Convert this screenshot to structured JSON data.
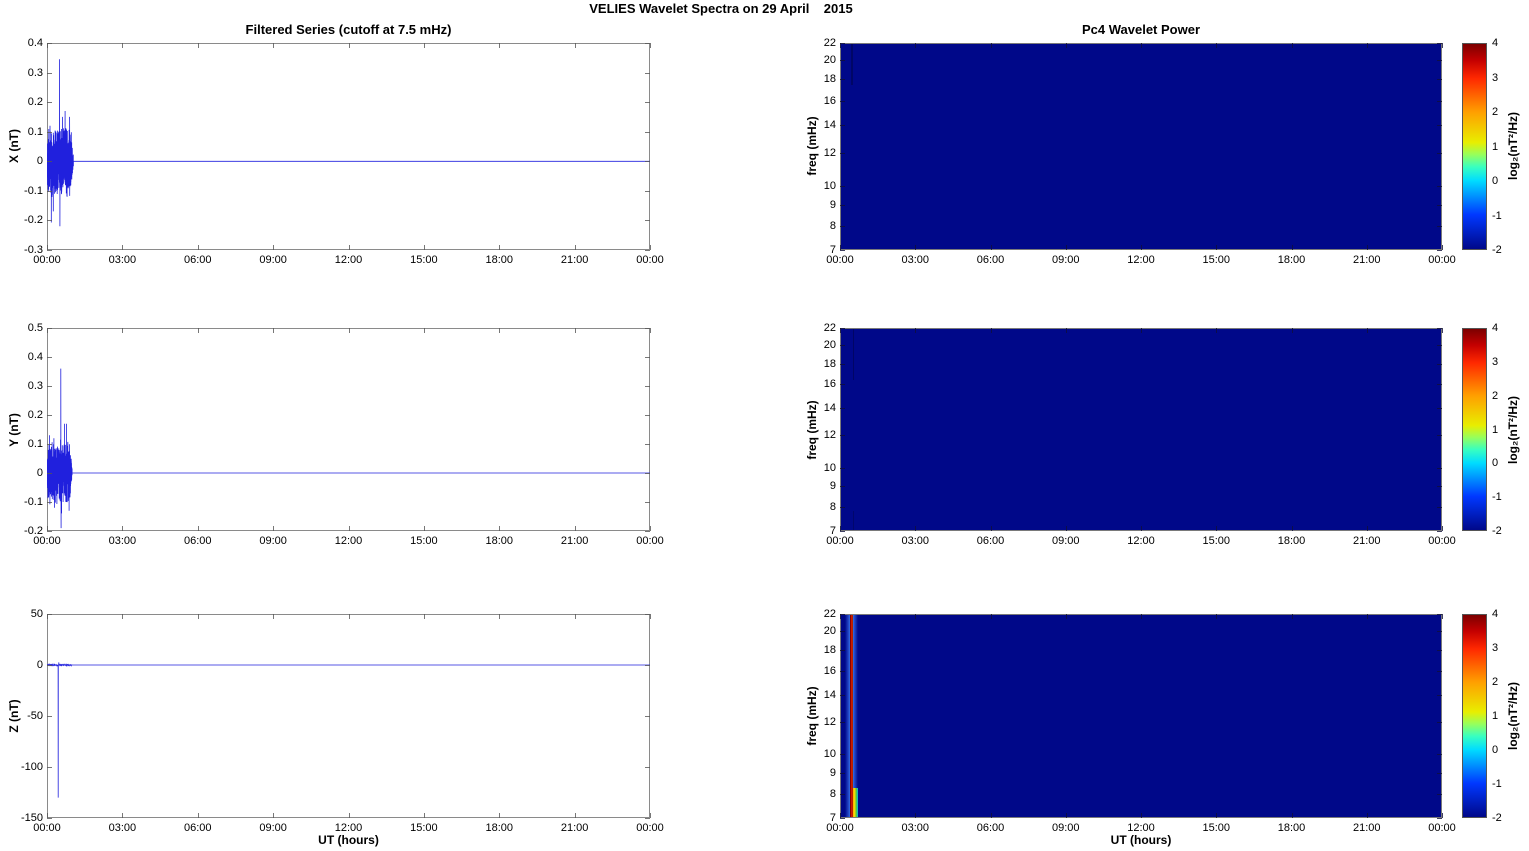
{
  "figure": {
    "main_title": "VELIES Wavelet Spectra on 29 April    2015",
    "left_title": "Filtered Series (cutoff at 7.5 mHz)",
    "right_title": "Pc4 Wavelet Power",
    "time_ticks": [
      "00:00",
      "03:00",
      "06:00",
      "09:00",
      "12:00",
      "15:00",
      "18:00",
      "21:00",
      "00:00"
    ],
    "time_range_hours": [
      0,
      24
    ],
    "colorbar": {
      "label": "log₂(nT²/Hz)",
      "tick_values": [
        4,
        3,
        2,
        1,
        0,
        -1,
        -2
      ],
      "tick_labels": [
        "4",
        "3",
        "2",
        "1",
        "0",
        "-1",
        "-2"
      ],
      "range_log2": [
        -2,
        4
      ],
      "colormap": "jet",
      "gradient": [
        [
          0.0,
          "#000889"
        ],
        [
          0.167,
          "#0038ff"
        ],
        [
          0.333,
          "#00dcff"
        ],
        [
          0.4,
          "#38ffc0"
        ],
        [
          0.46,
          "#96ff5c"
        ],
        [
          0.52,
          "#e8ee00"
        ],
        [
          0.667,
          "#ffa000"
        ],
        [
          0.833,
          "#ff2800"
        ],
        [
          0.92,
          "#c40000"
        ],
        [
          1.0,
          "#7c0000"
        ]
      ]
    }
  },
  "chart_data": [
    {
      "type": "line",
      "title": "Filtered Series (cutoff at 7.5 mHz)",
      "ylabel": "X (nT)",
      "ylim": [
        -0.3,
        0.4
      ],
      "yticks": [
        0.4,
        0.3,
        0.2,
        0.1,
        0,
        -0.1,
        -0.2,
        -0.3
      ],
      "ytick_labels": [
        "0.4",
        "0.3",
        "0.2",
        "0.1",
        "0",
        "-0.1",
        "-0.2",
        "-0.3"
      ],
      "line_color": "#2020dd",
      "seed": 11,
      "series_summary": {
        "kind": "noise_burst",
        "burst_start_h": 0,
        "burst_end_h": 1.05,
        "typical_amp_nT": 0.055,
        "max_nT": 0.345,
        "max_t_h": 0.5,
        "min_nT": -0.22,
        "min_t_h": 0.515,
        "extra_spikes": [
          {
            "t": 0.12,
            "v": 0.12
          },
          {
            "t": 0.3,
            "v": -0.11
          },
          {
            "t": 0.62,
            "v": 0.15
          },
          {
            "t": 0.72,
            "v": 0.17
          },
          {
            "t": 0.8,
            "v": -0.12
          },
          {
            "t": 0.9,
            "v": 0.15
          }
        ],
        "value_after_burst_nT": 0
      }
    },
    {
      "type": "line",
      "ylabel": "Y (nT)",
      "ylim": [
        -0.2,
        0.5
      ],
      "yticks": [
        0.5,
        0.4,
        0.3,
        0.2,
        0.1,
        0,
        -0.1,
        -0.2
      ],
      "ytick_labels": [
        "0.5",
        "0.4",
        "0.3",
        "0.2",
        "0.1",
        "0",
        "-0.1",
        "-0.2"
      ],
      "line_color": "#2020dd",
      "seed": 29,
      "series_summary": {
        "kind": "noise_burst",
        "burst_start_h": 0,
        "burst_end_h": 1.0,
        "typical_amp_nT": 0.05,
        "max_nT": 0.36,
        "max_t_h": 0.55,
        "min_nT": -0.19,
        "min_t_h": 0.56,
        "extra_spikes": [
          {
            "t": 0.1,
            "v": 0.13
          },
          {
            "t": 0.3,
            "v": -0.12
          },
          {
            "t": 0.7,
            "v": 0.17
          },
          {
            "t": 0.78,
            "v": 0.17
          },
          {
            "t": 0.88,
            "v": -0.13
          }
        ],
        "value_after_burst_nT": 0
      }
    },
    {
      "type": "line",
      "ylabel": "Z (nT)",
      "xlabel": "UT (hours)",
      "ylim": [
        -150,
        50
      ],
      "yticks": [
        50,
        0,
        -50,
        -100,
        -150
      ],
      "ytick_labels": [
        "50",
        "0",
        "-50",
        "-100",
        "-150"
      ],
      "line_color": "#2020dd",
      "seed": 37,
      "series_summary": {
        "kind": "impulse",
        "noise_amp_nT": 0.45,
        "noise_end_h": 1.0,
        "spike_t_h": 0.445,
        "spike_nT": -130,
        "extra_spikes": [
          {
            "t": 0.3,
            "v": 1.2
          },
          {
            "t": 0.47,
            "v": 2.5
          }
        ],
        "value_after_burst_nT": 0
      }
    },
    {
      "type": "heatmap",
      "title": "Pc4 Wavelet Power",
      "ylabel": "freq (mHz)",
      "freq_ticks_mHz": [
        22,
        20,
        18,
        16,
        14,
        12,
        10,
        9,
        8,
        7
      ],
      "freq_range_mHz": [
        7,
        22
      ],
      "freq_scale": "log",
      "power_range_log2": [
        -2,
        4
      ],
      "background_value_log2": -2,
      "background_color": "#000889",
      "features": [
        {
          "kind": "band",
          "t_center_h": 0.45,
          "width_h": 0.07,
          "freq_from": 17.5,
          "freq_to": 22,
          "color": "#000660",
          "opacity": 0.85
        }
      ]
    },
    {
      "type": "heatmap",
      "ylabel": "freq (mHz)",
      "freq_ticks_mHz": [
        22,
        20,
        18,
        16,
        14,
        12,
        10,
        9,
        8,
        7
      ],
      "freq_range_mHz": [
        7,
        22
      ],
      "freq_scale": "log",
      "power_range_log2": [
        -2,
        4
      ],
      "background_value_log2": -2,
      "background_color": "#000889",
      "features": [
        {
          "kind": "band",
          "t_center_h": 0.5,
          "width_h": 0.07,
          "freq_from": 16.5,
          "freq_to": 22,
          "color": "#000560",
          "opacity": 0.85
        },
        {
          "kind": "band",
          "t_center_h": 0.5,
          "width_h": 0.07,
          "freq_from": 7,
          "freq_to": 7.9,
          "color": "#000560",
          "opacity": 0.7
        }
      ]
    },
    {
      "type": "heatmap",
      "ylabel": "freq (mHz)",
      "xlabel": "UT (hours)",
      "freq_ticks_mHz": [
        22,
        20,
        18,
        16,
        14,
        12,
        10,
        9,
        8,
        7
      ],
      "freq_range_mHz": [
        7,
        22
      ],
      "freq_scale": "log",
      "power_range_log2": [
        -2,
        4
      ],
      "background_value_log2": -2,
      "background_color": "#000889",
      "features": [],
      "streak": {
        "t_center_h": 0.42,
        "peak_power_log2": 4,
        "halo_width_h": 0.5,
        "halo_color": "#2a55d4",
        "halo_mid_color": "#3cb4ff",
        "core_width_h": 0.15,
        "core_colors": [
          "#5a0000",
          "#b00000",
          "#e83000",
          "#7a1600"
        ],
        "flare": {
          "height_frac": 0.14,
          "width_h": 0.3,
          "colors": [
            "#c42000",
            "#ff9800",
            "#ffe000",
            "#58c838",
            "#00b8e8"
          ]
        }
      }
    }
  ]
}
